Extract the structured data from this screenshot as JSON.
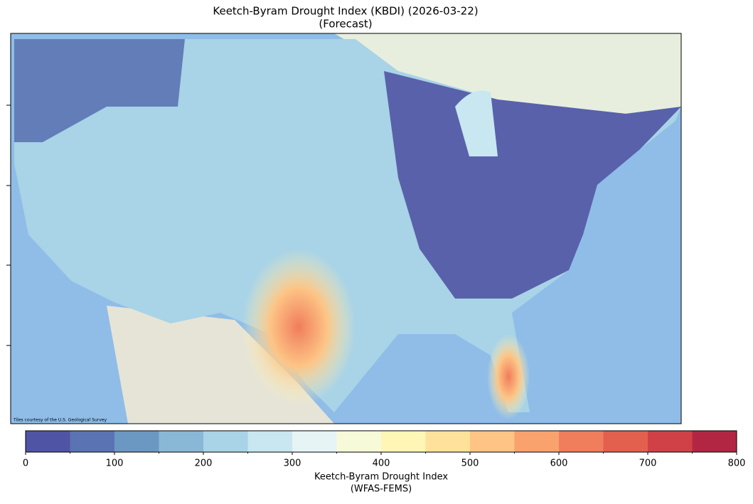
{
  "title": [
    "Keetch-Byram Drought Index (KBDI) (2026-03-22)",
    "(Forecast)"
  ],
  "attribution": "Tiles courtesy of the U.S. Geological Survey",
  "colorbar": {
    "bounds": [
      0,
      50,
      100,
      150,
      200,
      250,
      300,
      350,
      400,
      450,
      500,
      550,
      600,
      650,
      700,
      750,
      800
    ],
    "colors": [
      "#5054a4",
      "#5a73b3",
      "#6b97c3",
      "#89b8d6",
      "#a9d3e6",
      "#c8e7f0",
      "#e6f4f6",
      "#f6fad8",
      "#fff5b5",
      "#fee19a",
      "#fdc485",
      "#f9a26e",
      "#f07d5c",
      "#e2604d",
      "#cf4146",
      "#b32643"
    ],
    "ticks": [
      0,
      100,
      200,
      300,
      400,
      500,
      600,
      700,
      800
    ],
    "label": [
      "Keetch-Byram Drought Index",
      "(WFAS-FEMS)"
    ]
  }
}
